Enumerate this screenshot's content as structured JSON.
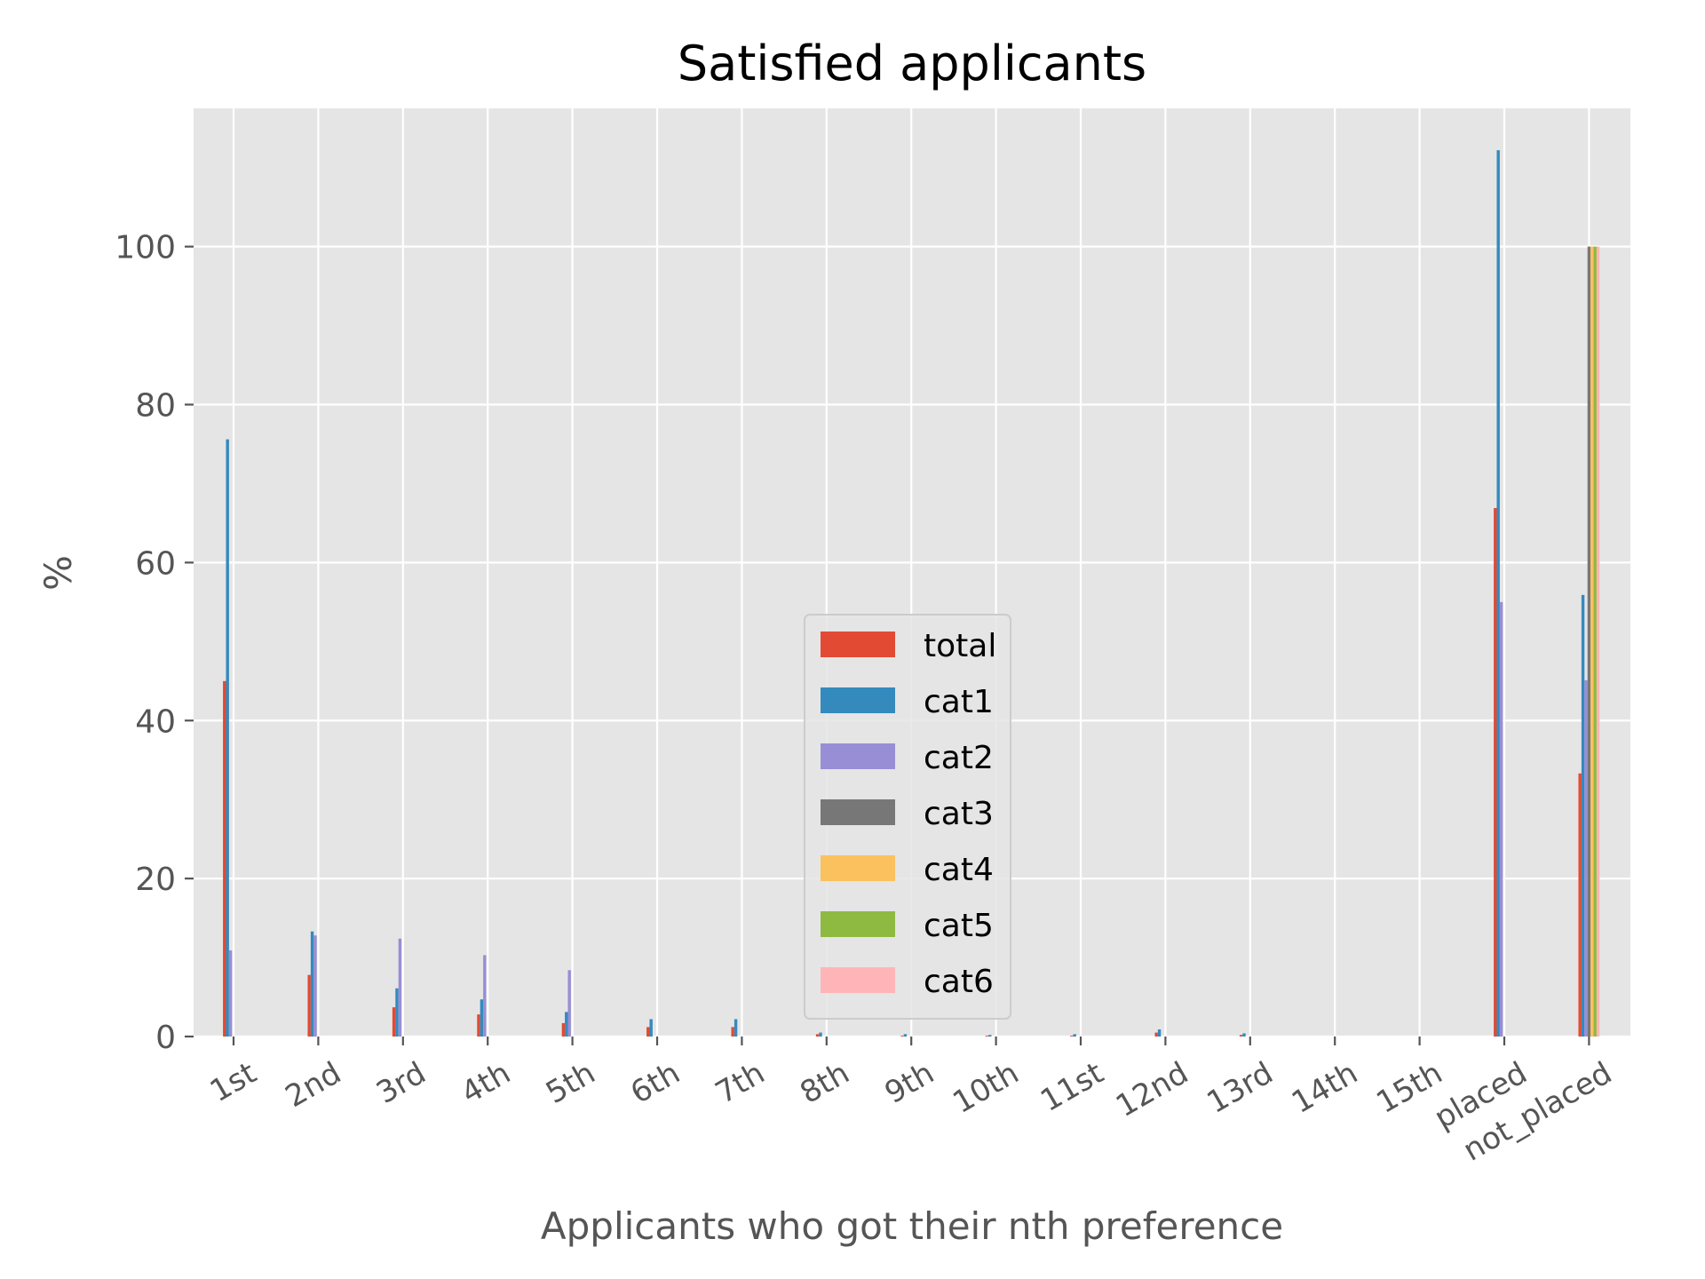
{
  "chart_data": {
    "type": "bar",
    "title": "Satisfied applicants",
    "xlabel": "Applicants who got their nth preference",
    "ylabel": "%",
    "ylim": [
      0,
      117.5
    ],
    "yticks": [
      0,
      20,
      40,
      60,
      80,
      100
    ],
    "grid": true,
    "legend_position": "lower-center",
    "categories": [
      "1st",
      "2nd",
      "3rd",
      "4th",
      "5th",
      "6th",
      "7th",
      "8th",
      "9th",
      "10th",
      "11st",
      "12nd",
      "13rd",
      "14th",
      "15th",
      "placed",
      "not_placed"
    ],
    "series": [
      {
        "name": "total",
        "color": "#E24A33",
        "values": [
          45.0,
          7.8,
          3.7,
          2.8,
          1.7,
          1.2,
          1.2,
          0.3,
          0.1,
          0.1,
          0.1,
          0.5,
          0.2,
          0,
          0,
          66.9,
          33.3
        ]
      },
      {
        "name": "cat1",
        "color": "#348ABD",
        "values": [
          75.6,
          13.3,
          6.1,
          4.7,
          3.1,
          2.2,
          2.2,
          0.5,
          0.3,
          0.2,
          0.3,
          0.9,
          0.4,
          0,
          0,
          112.2,
          55.9
        ]
      },
      {
        "name": "cat2",
        "color": "#988ED5",
        "values": [
          10.9,
          12.8,
          12.4,
          10.3,
          8.4,
          0,
          0,
          0,
          0,
          0,
          0,
          0,
          0,
          0,
          0,
          55.0,
          45.1
        ]
      },
      {
        "name": "cat3",
        "color": "#777777",
        "values": [
          0,
          0,
          0,
          0,
          0,
          0,
          0,
          0,
          0,
          0,
          0,
          0,
          0,
          0,
          0,
          0,
          100.0
        ]
      },
      {
        "name": "cat4",
        "color": "#FBC15E",
        "values": [
          0,
          0,
          0,
          0,
          0,
          0,
          0,
          0,
          0,
          0,
          0,
          0,
          0,
          0,
          0,
          0,
          100.0
        ]
      },
      {
        "name": "cat5",
        "color": "#8EBA42",
        "values": [
          0,
          0,
          0,
          0,
          0,
          0,
          0,
          0,
          0,
          0,
          0,
          0,
          0,
          0,
          0,
          0,
          100.0
        ]
      },
      {
        "name": "cat6",
        "color": "#FFB5B8",
        "values": [
          0,
          0,
          0,
          0,
          0,
          0,
          0,
          0,
          0,
          0,
          0,
          0,
          0,
          0,
          0,
          0,
          100.0
        ]
      }
    ]
  }
}
